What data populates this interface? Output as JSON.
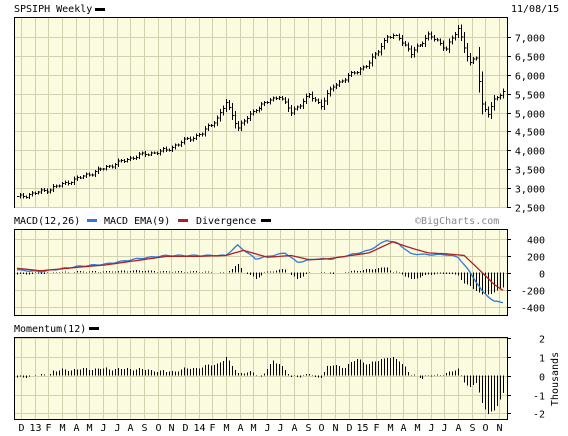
{
  "header": {
    "title": "SPSIPH Weekly",
    "date": "11/08/15",
    "watermark": "©BigCharts.com"
  },
  "colors": {
    "panel_bg": "#fbfbdf",
    "grid": "#d2d2b0",
    "macd": "#3377dd",
    "macd_ema": "#aa2222",
    "bars": "#000000"
  },
  "chart_data": [
    {
      "type": "bar",
      "name": "price",
      "title": "SPSIPH Weekly",
      "ylim": [
        2500,
        7500
      ],
      "yticks": [
        "2,500",
        "3,000",
        "3,500",
        "4,000",
        "4,500",
        "5,000",
        "5,500",
        "6,000",
        "6,500",
        "7,000"
      ],
      "ytick_values": [
        2500,
        3000,
        3500,
        4000,
        4500,
        5000,
        5500,
        6000,
        6500,
        7000
      ],
      "x_labels": [
        "D",
        "13",
        "F",
        "M",
        "A",
        "M",
        "J",
        "J",
        "A",
        "S",
        "O",
        "N",
        "D",
        "14",
        "F",
        "M",
        "A",
        "M",
        "J",
        "J",
        "A",
        "S",
        "O",
        "N",
        "D",
        "15",
        "F",
        "M",
        "A",
        "M",
        "J",
        "J",
        "A",
        "S",
        "O",
        "N"
      ],
      "anchors": [
        [
          0,
          2750
        ],
        [
          10,
          2950
        ],
        [
          20,
          3250
        ],
        [
          30,
          3550
        ],
        [
          40,
          3850
        ],
        [
          50,
          4000
        ],
        [
          56,
          4250
        ],
        [
          62,
          4450
        ],
        [
          67,
          4850
        ],
        [
          70,
          5250
        ],
        [
          74,
          4600
        ],
        [
          80,
          5100
        ],
        [
          88,
          5450
        ],
        [
          92,
          5000
        ],
        [
          98,
          5450
        ],
        [
          102,
          5200
        ],
        [
          106,
          5700
        ],
        [
          112,
          6000
        ],
        [
          118,
          6300
        ],
        [
          124,
          7000
        ],
        [
          128,
          7000
        ],
        [
          132,
          6550
        ],
        [
          138,
          7050
        ],
        [
          144,
          6700
        ],
        [
          148,
          7200
        ],
        [
          152,
          6300
        ],
        [
          154,
          6450
        ],
        [
          156,
          5200
        ],
        [
          158,
          5000
        ],
        [
          160,
          5300
        ],
        [
          163,
          5550
        ]
      ],
      "weeks": 164
    },
    {
      "type": "line",
      "name": "macd",
      "ylim": [
        -500,
        500
      ],
      "yticks": [
        "400",
        "200",
        "0",
        "-200",
        "-400"
      ],
      "ytick_values": [
        400,
        200,
        0,
        -200,
        -400
      ],
      "series": [
        {
          "name": "MACD(12,26)",
          "anchors": [
            [
              0,
              30
            ],
            [
              8,
              10
            ],
            [
              20,
              70
            ],
            [
              30,
              100
            ],
            [
              40,
              160
            ],
            [
              50,
              200
            ],
            [
              60,
              200
            ],
            [
              70,
              200
            ],
            [
              74,
              320
            ],
            [
              80,
              160
            ],
            [
              90,
              230
            ],
            [
              94,
              120
            ],
            [
              100,
              160
            ],
            [
              106,
              160
            ],
            [
              112,
              210
            ],
            [
              118,
              260
            ],
            [
              124,
              380
            ],
            [
              128,
              340
            ],
            [
              132,
              220
            ],
            [
              138,
              210
            ],
            [
              144,
              210
            ],
            [
              148,
              180
            ],
            [
              152,
              0
            ],
            [
              156,
              -220
            ],
            [
              160,
              -340
            ],
            [
              163,
              -350
            ]
          ]
        },
        {
          "name": "MACD EMA(9)",
          "anchors": [
            [
              0,
              50
            ],
            [
              8,
              20
            ],
            [
              20,
              60
            ],
            [
              30,
              90
            ],
            [
              40,
              140
            ],
            [
              50,
              190
            ],
            [
              60,
              190
            ],
            [
              70,
              200
            ],
            [
              76,
              260
            ],
            [
              84,
              180
            ],
            [
              92,
              200
            ],
            [
              98,
              150
            ],
            [
              104,
              160
            ],
            [
              112,
              200
            ],
            [
              118,
              230
            ],
            [
              126,
              360
            ],
            [
              132,
              290
            ],
            [
              138,
              230
            ],
            [
              144,
              220
            ],
            [
              150,
              200
            ],
            [
              156,
              0
            ],
            [
              160,
              -140
            ],
            [
              163,
              -210
            ]
          ]
        }
      ],
      "legend": [
        "MACD(12,26)",
        "MACD EMA(9)",
        "Divergence"
      ],
      "divergence": "series[0] - series[1]"
    },
    {
      "type": "bar",
      "name": "momentum",
      "title": "Momentum(12)",
      "ylim": [
        -2.3,
        2.0
      ],
      "yticks": [
        "2",
        "1",
        "0",
        "-1",
        "-2"
      ],
      "ytick_values": [
        2,
        1,
        0,
        -1,
        -2
      ],
      "ylabel": "Thousands",
      "offset_weeks": 12
    }
  ]
}
